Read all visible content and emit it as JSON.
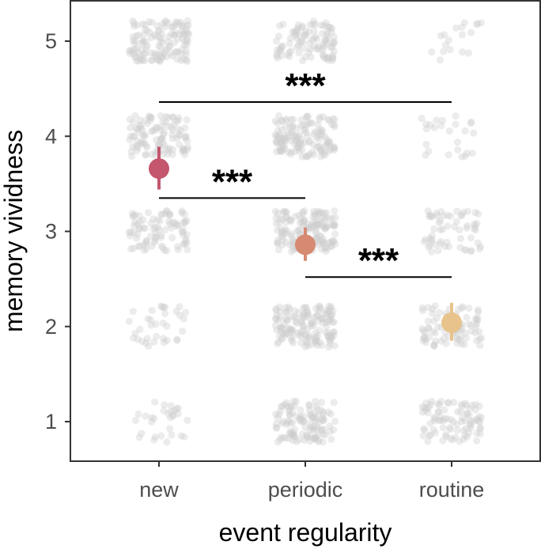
{
  "chart_data": {
    "type": "scatter",
    "xlabel": "event regularity",
    "ylabel": "memory vividness",
    "categories": [
      "new",
      "periodic",
      "routine"
    ],
    "yticks": [
      1,
      2,
      3,
      4,
      5
    ],
    "ylim": [
      0.55,
      5.4
    ],
    "grid": false,
    "legend": "none",
    "raw_point_counts": [
      [
        30,
        120,
        90
      ],
      [
        35,
        150,
        90
      ],
      [
        90,
        150,
        60
      ],
      [
        110,
        140,
        25
      ],
      [
        130,
        100,
        18
      ]
    ],
    "means": [
      3.66,
      2.86,
      2.04
    ],
    "ci_low": [
      3.44,
      2.69,
      1.85
    ],
    "ci_high": [
      3.89,
      3.04,
      2.25
    ],
    "mean_colors": [
      "#c4566d",
      "#d68a72",
      "#e8c48c"
    ],
    "raw_point_color": "#cccccc",
    "significance": [
      {
        "from": "new",
        "to": "routine",
        "y": 4.36,
        "label": "***"
      },
      {
        "from": "new",
        "to": "periodic",
        "y": 3.35,
        "label": "***"
      },
      {
        "from": "periodic",
        "to": "routine",
        "y": 2.52,
        "label": "***"
      }
    ]
  }
}
